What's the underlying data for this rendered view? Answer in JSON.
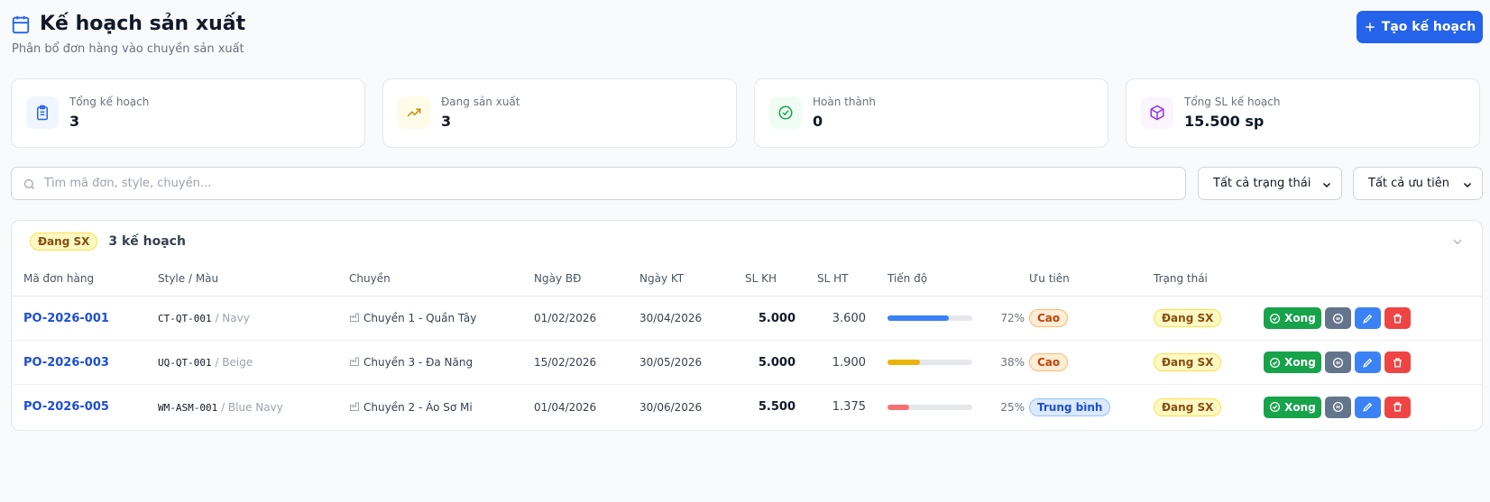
{
  "header": {
    "title": "Kế hoạch sản xuất",
    "subtitle": "Phân bổ đơn hàng vào chuyền sản xuất",
    "button": "Tạo kế hoạch"
  },
  "stats": [
    {
      "label": "Tổng kế hoạch",
      "value": 3
    },
    {
      "label": "Đang sản xuất",
      "value": 3
    },
    {
      "label": "Hoàn thành",
      "value": 0
    },
    {
      "label": "Tổng SL kế hoạch",
      "value": "15.500 sp"
    }
  ],
  "filters": {
    "search_placeholder": "Tìm mã đơn, style, chuyền...",
    "status": "Tất cả trạng thái",
    "priority": "Tất cả ưu tiên"
  },
  "group": {
    "badge": "Đang SX",
    "count": "3 kế hoạch"
  },
  "table": {
    "columns": [
      "Mã đơn hàng",
      "Style / Màu",
      "Chuyền",
      "Ngày BĐ",
      "Ngày KT",
      "SL KH",
      "SL HT",
      "Tiến độ",
      "Ưu tiên",
      "Trạng thái"
    ],
    "action": "Xong",
    "rows": [
      {
        "code": "PO-2026-001",
        "style": "CT-QT-001",
        "color": "/ Navy",
        "line": "Chuyền 1 - Quần Tây",
        "start": "01/02/2026",
        "end": "30/04/2026",
        "sl_kh": "5.000",
        "sl_ht": "3.600",
        "progress_value": 72,
        "progress_label": "72%",
        "progress_color": "#3b82f6",
        "priority": "Cao",
        "priority_color": "#c2410c",
        "priority_bg": "#ffedd5",
        "priority_border": "#fdba74",
        "status": "Đang SX"
      },
      {
        "code": "PO-2026-003",
        "style": "UQ-QT-001",
        "color": "/ Beige",
        "line": "Chuyền 3 - Đa Năng",
        "start": "15/02/2026",
        "end": "30/05/2026",
        "sl_kh": "5.000",
        "sl_ht": "1.900",
        "progress_value": 38,
        "progress_label": "38%",
        "progress_color": "#eab308",
        "priority": "Cao",
        "priority_color": "#c2410c",
        "priority_bg": "#ffedd5",
        "priority_border": "#fdba74",
        "status": "Đang SX"
      },
      {
        "code": "PO-2026-005",
        "style": "WM-ASM-001",
        "color": "/ Blue Navy",
        "line": "Chuyền 2 - Áo Sơ Mi",
        "start": "01/04/2026",
        "end": "30/06/2026",
        "sl_kh": "5.500",
        "sl_ht": "1.375",
        "progress_value": 25,
        "progress_label": "25%",
        "progress_color": "#f87171",
        "priority": "Trung bình",
        "priority_color": "#1d4ed8",
        "priority_bg": "#dbeafe",
        "priority_border": "#93c5fd",
        "status": "Đang SX"
      }
    ]
  }
}
